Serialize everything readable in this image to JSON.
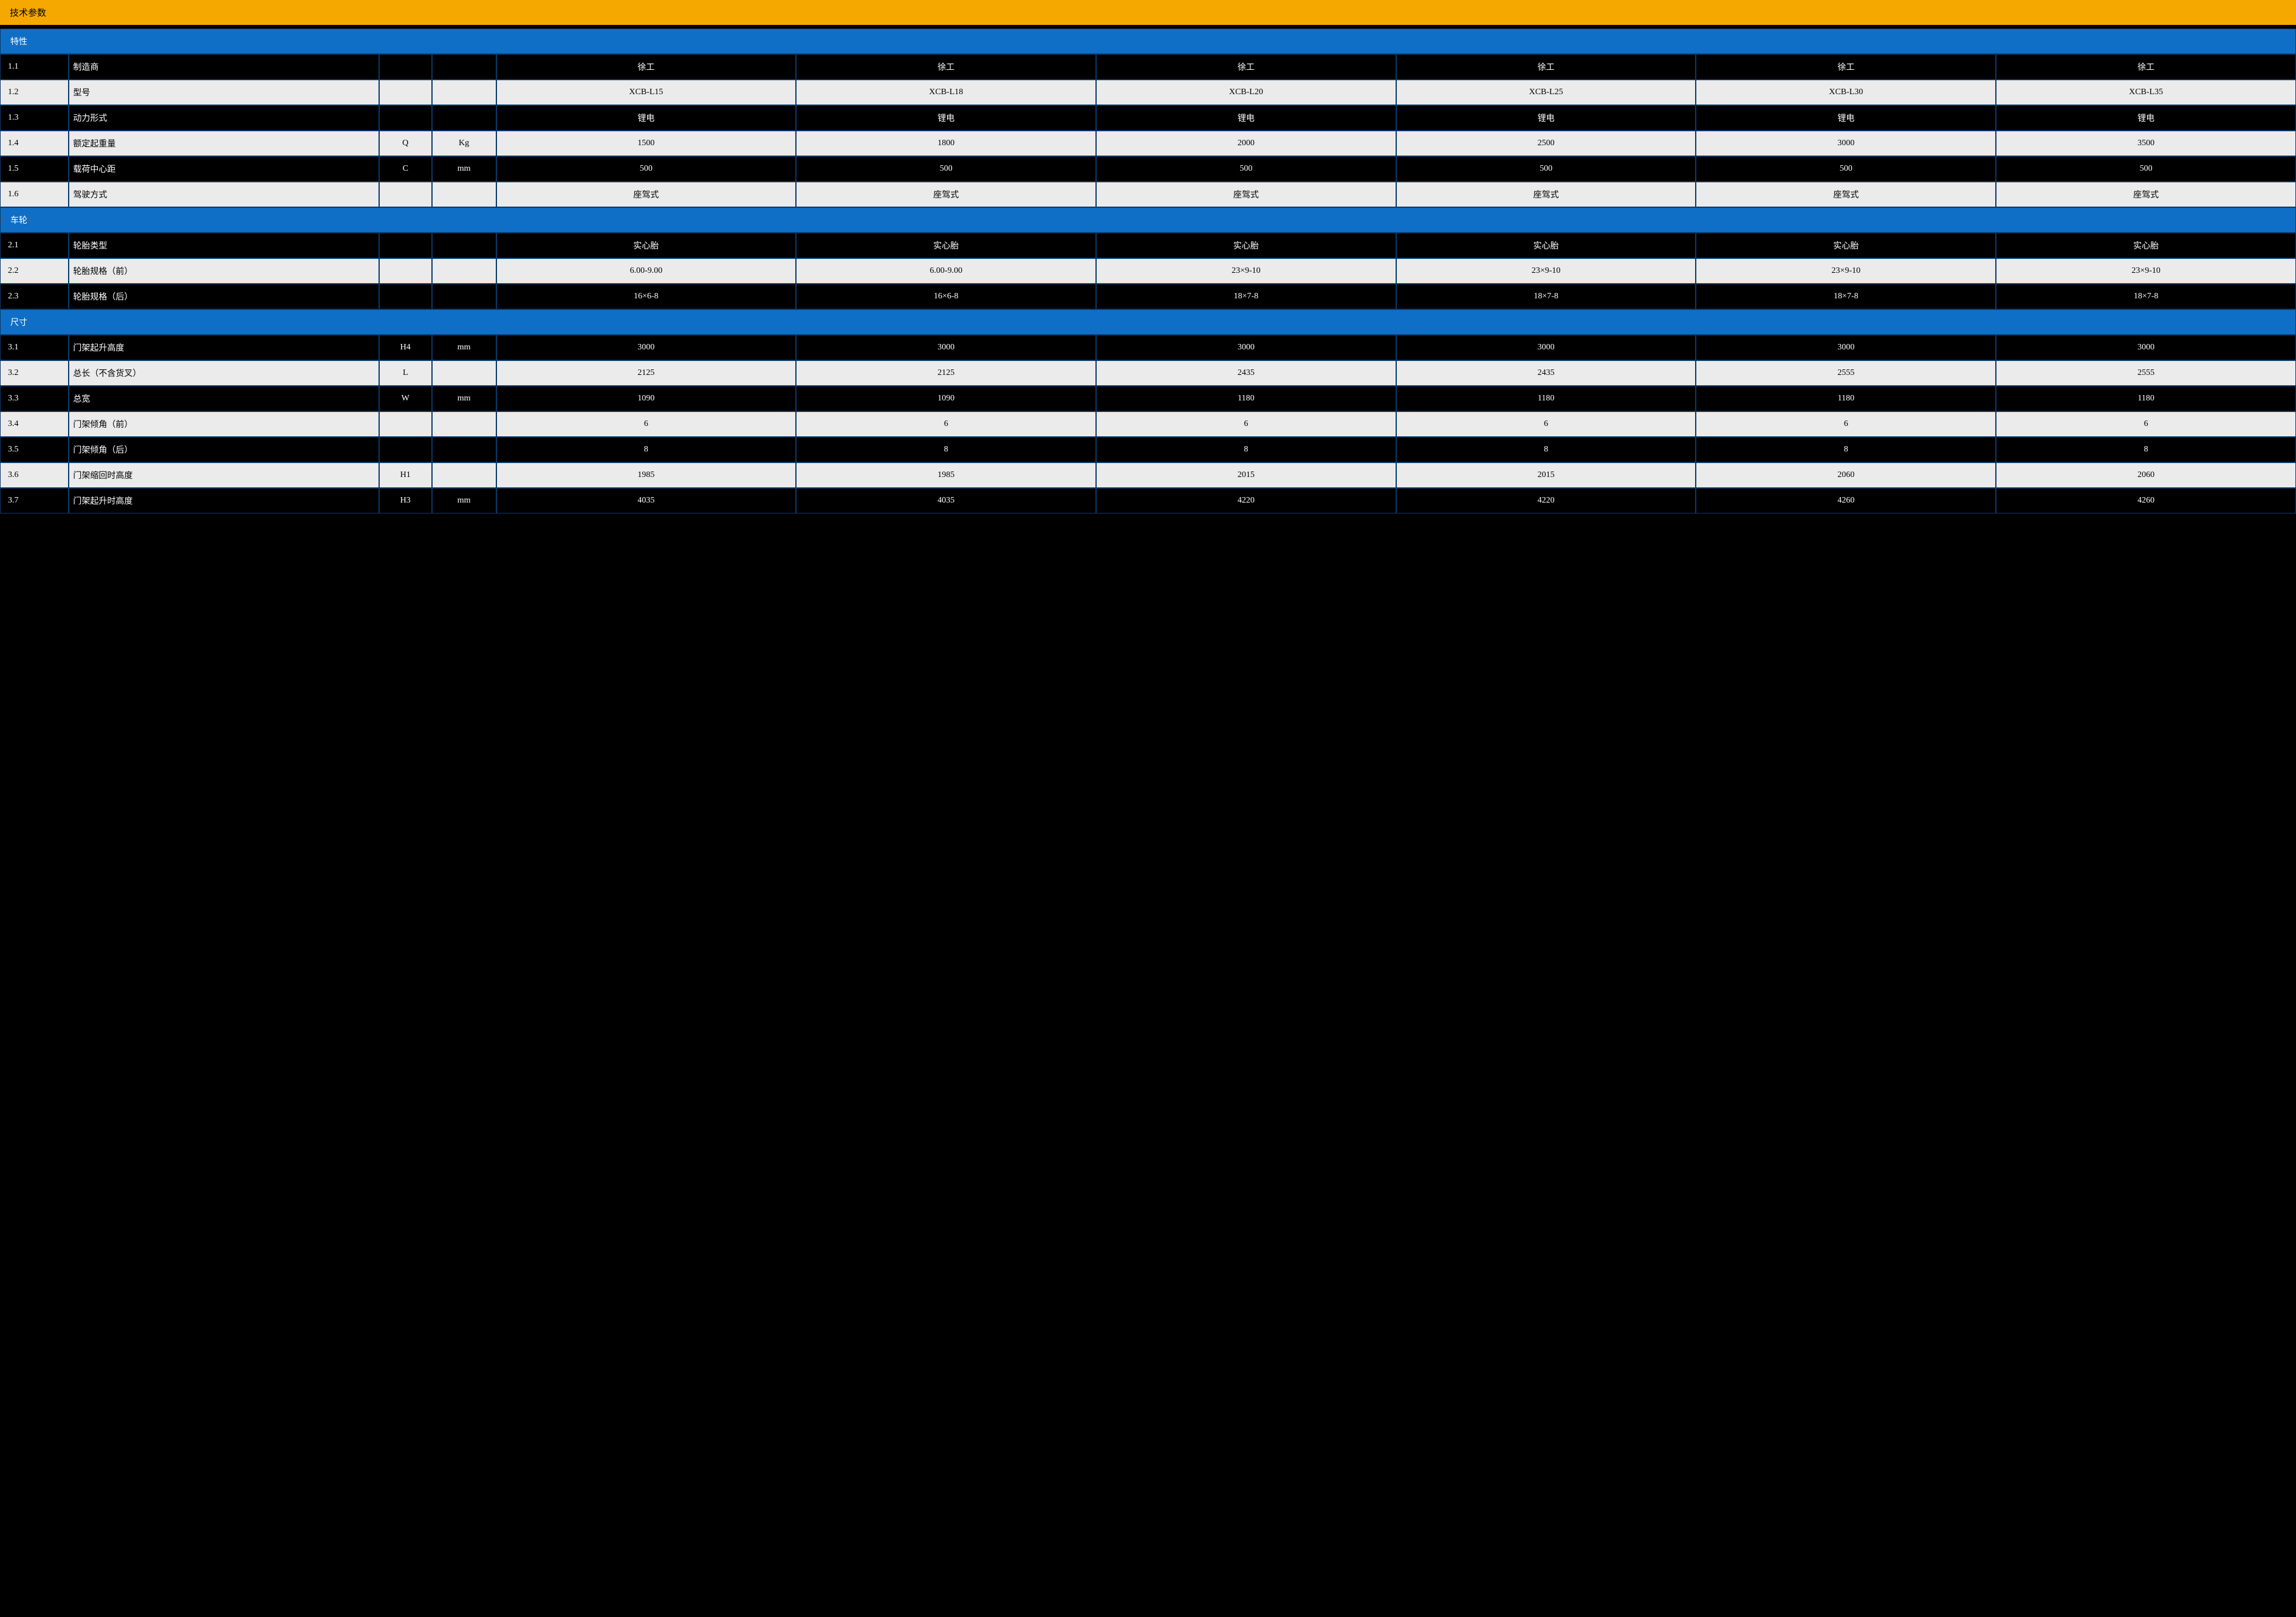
{
  "title": "技术参数",
  "colors": {
    "title_bg": "#f5a800",
    "section_bg": "#0f6fc6",
    "dark_bg": "#000000",
    "light_bg": "#ebebeb",
    "border": "#0a3a6a"
  },
  "columns": {
    "idx_width_pct": 3.0,
    "label_width_pct": 13.5,
    "sym_width_pct": 2.3,
    "unit_width_pct": 2.8,
    "val_width_pct": 13.06,
    "model_count": 6
  },
  "sections": [
    {
      "name": "特性",
      "rows": [
        {
          "style": "dark",
          "idx": "1.1",
          "label": "制造商",
          "sym": "",
          "unit": "",
          "vals": [
            "徐工",
            "徐工",
            "徐工",
            "徐工",
            "徐工",
            "徐工"
          ]
        },
        {
          "style": "light",
          "idx": "1.2",
          "label": "型号",
          "sym": "",
          "unit": "",
          "vals": [
            "XCB-L15",
            "XCB-L18",
            "XCB-L20",
            "XCB-L25",
            "XCB-L30",
            "XCB-L35"
          ]
        },
        {
          "style": "dark",
          "idx": "1.3",
          "label": "动力形式",
          "sym": "",
          "unit": "",
          "vals": [
            "锂电",
            "锂电",
            "锂电",
            "锂电",
            "锂电",
            "锂电"
          ]
        },
        {
          "style": "light",
          "idx": "1.4",
          "label": "额定起重量",
          "sym": "Q",
          "unit": "Kg",
          "vals": [
            "1500",
            "1800",
            "2000",
            "2500",
            "3000",
            "3500"
          ]
        },
        {
          "style": "dark",
          "idx": "1.5",
          "label": "载荷中心距",
          "sym": "C",
          "unit": "mm",
          "vals": [
            "500",
            "500",
            "500",
            "500",
            "500",
            "500"
          ]
        },
        {
          "style": "light",
          "idx": "1.6",
          "label": "驾驶方式",
          "sym": "",
          "unit": "",
          "vals": [
            "座驾式",
            "座驾式",
            "座驾式",
            "座驾式",
            "座驾式",
            "座驾式"
          ]
        }
      ]
    },
    {
      "name": "车轮",
      "rows": [
        {
          "style": "dark",
          "idx": "2.1",
          "label": "轮胎类型",
          "sym": "",
          "unit": "",
          "vals": [
            "实心胎",
            "实心胎",
            "实心胎",
            "实心胎",
            "实心胎",
            "实心胎"
          ]
        },
        {
          "style": "light",
          "idx": "2.2",
          "label": "轮胎规格（前）",
          "sym": "",
          "unit": "",
          "vals": [
            "6.00-9.00",
            "6.00-9.00",
            "23×9-10",
            "23×9-10",
            "23×9-10",
            "23×9-10"
          ]
        },
        {
          "style": "dark",
          "idx": "2.3",
          "label": "轮胎规格（后）",
          "sym": "",
          "unit": "",
          "vals": [
            "16×6-8",
            "16×6-8",
            "18×7-8",
            "18×7-8",
            "18×7-8",
            "18×7-8"
          ]
        }
      ]
    },
    {
      "name": "尺寸",
      "rows": [
        {
          "style": "dark",
          "idx": "3.1",
          "label": "门架起升高度",
          "sym": "H4",
          "unit": "mm",
          "vals": [
            "3000",
            "3000",
            "3000",
            "3000",
            "3000",
            "3000"
          ]
        },
        {
          "style": "light",
          "idx": "3.2",
          "label": "总长（不含货叉）",
          "sym": "L",
          "unit": "",
          "vals": [
            "2125",
            "2125",
            "2435",
            "2435",
            "2555",
            "2555"
          ]
        },
        {
          "style": "dark",
          "idx": "3.3",
          "label": "总宽",
          "sym": "W",
          "unit": "mm",
          "vals": [
            "1090",
            "1090",
            "1180",
            "1180",
            "1180",
            "1180"
          ]
        },
        {
          "style": "light",
          "idx": "3.4",
          "label": "门架倾角（前）",
          "sym": "",
          "unit": "",
          "vals": [
            "6",
            "6",
            "6",
            "6",
            "6",
            "6"
          ]
        },
        {
          "style": "dark",
          "idx": "3.5",
          "label": "门架倾角（后）",
          "sym": "",
          "unit": "",
          "vals": [
            "8",
            "8",
            "8",
            "8",
            "8",
            "8"
          ]
        },
        {
          "style": "light",
          "idx": "3.6",
          "label": "门架缩回时高度",
          "sym": "H1",
          "unit": "",
          "vals": [
            "1985",
            "1985",
            "2015",
            "2015",
            "2060",
            "2060"
          ]
        },
        {
          "style": "dark",
          "idx": "3.7",
          "label": "门架起升时高度",
          "sym": "H3",
          "unit": "mm",
          "vals": [
            "4035",
            "4035",
            "4220",
            "4220",
            "4260",
            "4260"
          ]
        }
      ]
    }
  ]
}
